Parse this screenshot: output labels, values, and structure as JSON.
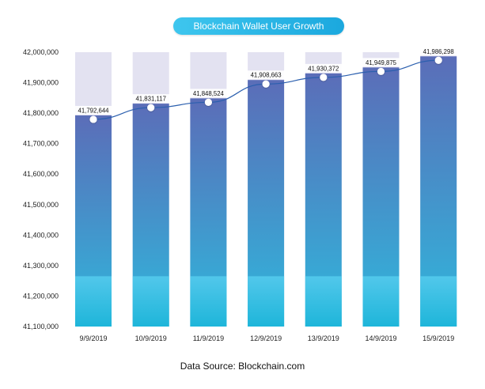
{
  "chart_data": {
    "type": "bar",
    "title": "Blockchain Wallet User Growth",
    "categories": [
      "9/9/2019",
      "10/9/2019",
      "11/9/2019",
      "12/9/2019",
      "13/9/2019",
      "14/9/2019",
      "15/9/2019"
    ],
    "values": [
      41792644,
      41831117,
      41848524,
      41908663,
      41930372,
      41949875,
      41986298
    ],
    "value_labels": [
      "41,792,644",
      "41,831,117",
      "41,848,524",
      "41,908,663",
      "41,930,372",
      "41,949,875",
      "41,986,298"
    ],
    "overlay": "line with markers",
    "ylim": [
      41100000,
      42000000
    ],
    "yticks": [
      41100000,
      41200000,
      41300000,
      41400000,
      41500000,
      41600000,
      41700000,
      41800000,
      41900000,
      42000000
    ],
    "ytick_labels": [
      "41,100,000",
      "41,200,000",
      "41,300,000",
      "41,400,000",
      "41,500,000",
      "41,600,000",
      "41,700,000",
      "41,800,000",
      "41,900,000",
      "42,000,000"
    ],
    "xlabel": "",
    "ylabel": "",
    "grid": false,
    "legend": "none",
    "colors": {
      "bar_top": "#5b6db8",
      "bar_bottom": "#2fb7dc",
      "bar_lower_band": "#4bc9ee",
      "bar_background": "#e3e2f1",
      "line": "#2b5fae",
      "marker": "#ffffff"
    },
    "source": "Data Source: Blockchain.com"
  }
}
